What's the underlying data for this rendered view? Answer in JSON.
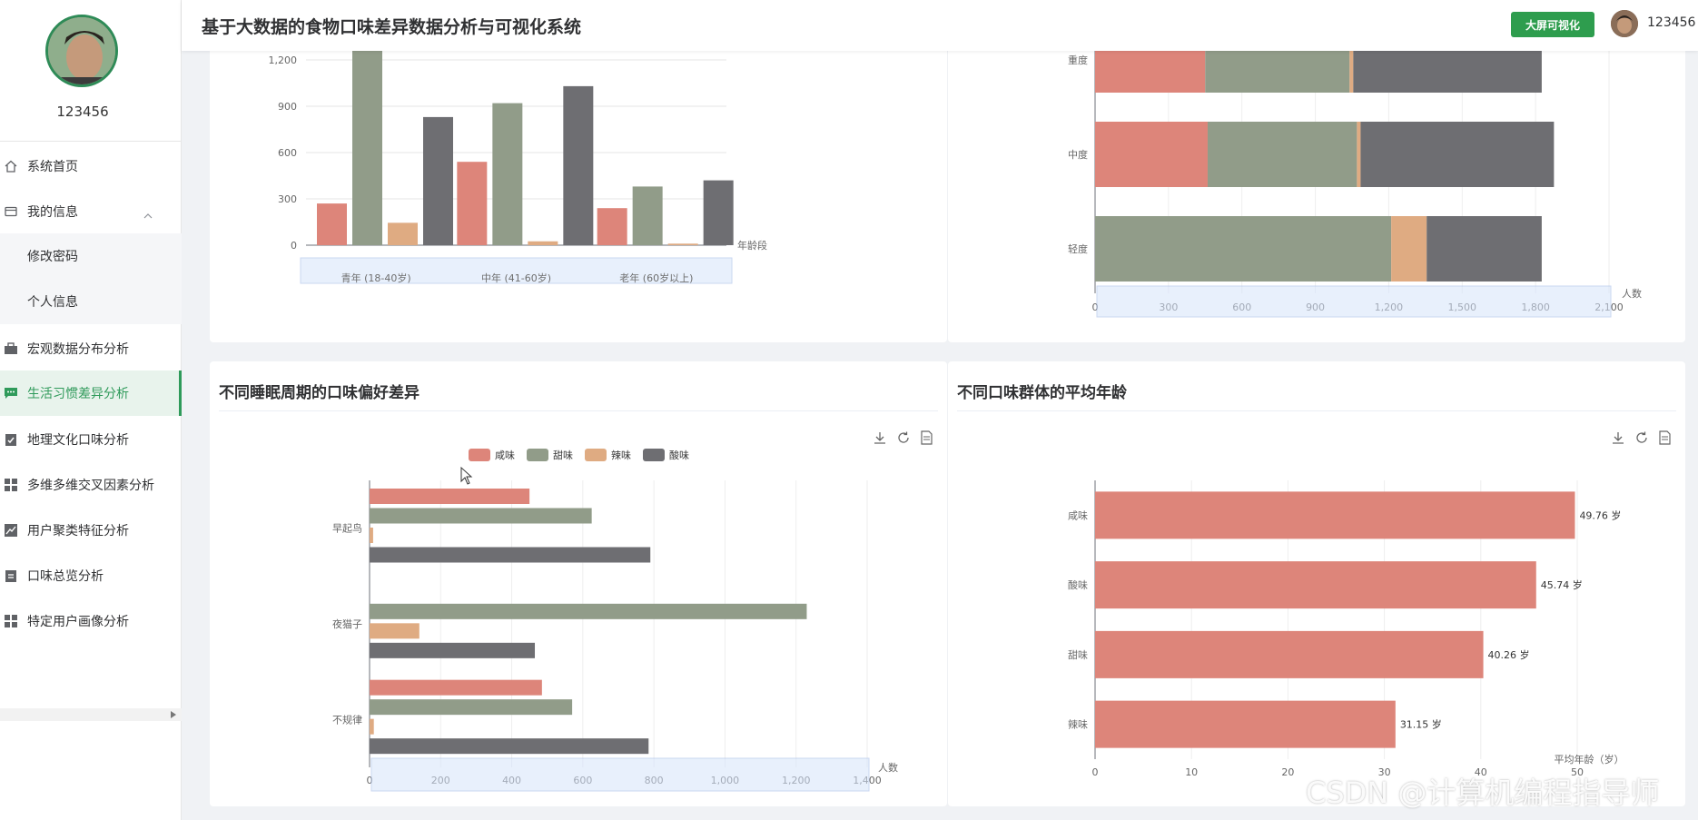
{
  "user": {
    "name": "123456"
  },
  "header": {
    "title": "基于大数据的食物口味差异数据分析与可视化系统",
    "screen_button": "大屏可视化",
    "user_name": "123456"
  },
  "sidebar": {
    "items": [
      {
        "label": "系统首页",
        "icon": "home-icon"
      },
      {
        "label": "我的信息",
        "icon": "card-icon"
      },
      {
        "label": "修改密码"
      },
      {
        "label": "个人信息"
      },
      {
        "label": "宏观数据分布分析",
        "icon": "briefcase-icon"
      },
      {
        "label": "生活习惯差异分析",
        "icon": "chat-icon",
        "active": true
      },
      {
        "label": "地理文化口味分析",
        "icon": "clipboard-check-icon"
      },
      {
        "label": "多维多维交叉因素分析",
        "icon": "grid-icon"
      },
      {
        "label": "用户聚类特征分析",
        "icon": "trend-icon"
      },
      {
        "label": "口味总览分析",
        "icon": "clipboard-icon"
      },
      {
        "label": "特定用户画像分析",
        "icon": "grid-icon"
      }
    ]
  },
  "colors": {
    "salty": "#dd857a",
    "sweet": "#919c89",
    "spicy": "#dfab82",
    "sour": "#6e6e72",
    "accent": "#2f9a5a",
    "slider": "#d6e4fb"
  },
  "chart_data": [
    {
      "id": "age-group",
      "type": "bar",
      "xlabel": "年龄段",
      "categories": [
        "青年 (18-40岁)",
        "中年 (41-60岁)",
        "老年 (60岁以上)"
      ],
      "y_ticks": [
        "0",
        "300",
        "600",
        "900",
        "1,200"
      ],
      "ylim": [
        0,
        1400
      ],
      "series": [
        {
          "name": "咸味",
          "values": [
            270,
            540,
            240
          ]
        },
        {
          "name": "甜味",
          "values": [
            1330,
            920,
            380
          ]
        },
        {
          "name": "辣味",
          "values": [
            145,
            25,
            10
          ]
        },
        {
          "name": "酸味",
          "values": [
            830,
            1030,
            420
          ]
        }
      ]
    },
    {
      "id": "severity-stacked",
      "type": "bar",
      "orientation": "horizontal",
      "stacked": true,
      "xlabel": "人数",
      "categories": [
        "重度",
        "中度",
        "轻度"
      ],
      "x_ticks": [
        "0",
        "300",
        "600",
        "900",
        "1,200",
        "1,500",
        "1,800",
        "2,100"
      ],
      "xlim": [
        0,
        2100
      ],
      "series": [
        {
          "name": "咸味",
          "values": [
            450,
            460,
            0
          ]
        },
        {
          "name": "甜味",
          "values": [
            590,
            610,
            1210
          ]
        },
        {
          "name": "辣味",
          "values": [
            15,
            15,
            145
          ]
        },
        {
          "name": "酸味",
          "values": [
            770,
            790,
            470
          ]
        }
      ]
    },
    {
      "id": "sleep-cycle",
      "type": "bar",
      "orientation": "horizontal",
      "title": "不同睡眠周期的口味偏好差异",
      "xlabel": "人数",
      "categories": [
        "早起鸟",
        "夜猫子",
        "不规律"
      ],
      "x_ticks": [
        "0",
        "200",
        "400",
        "600",
        "800",
        "1,000",
        "1,200",
        "1,400"
      ],
      "xlim": [
        0,
        1400
      ],
      "legend": [
        "咸味",
        "甜味",
        "辣味",
        "酸味"
      ],
      "series": [
        {
          "name": "咸味",
          "values": [
            450,
            0,
            485
          ]
        },
        {
          "name": "甜味",
          "values": [
            625,
            1230,
            570
          ]
        },
        {
          "name": "辣味",
          "values": [
            10,
            140,
            12
          ]
        },
        {
          "name": "酸味",
          "values": [
            790,
            465,
            785
          ]
        }
      ]
    },
    {
      "id": "avg-age",
      "type": "bar",
      "orientation": "horizontal",
      "title": "不同口味群体的平均年龄",
      "xlabel": "平均年龄（岁）",
      "categories": [
        "咸味",
        "酸味",
        "甜味",
        "辣味"
      ],
      "x_ticks": [
        "0",
        "10",
        "20",
        "30",
        "40",
        "50"
      ],
      "xlim": [
        0,
        50
      ],
      "values": [
        49.76,
        45.74,
        40.26,
        31.15
      ],
      "value_labels": [
        "49.76 岁",
        "45.74 岁",
        "40.26 岁",
        "31.15 岁"
      ]
    }
  ],
  "watermark": "CSDN @计算机编程指导师"
}
